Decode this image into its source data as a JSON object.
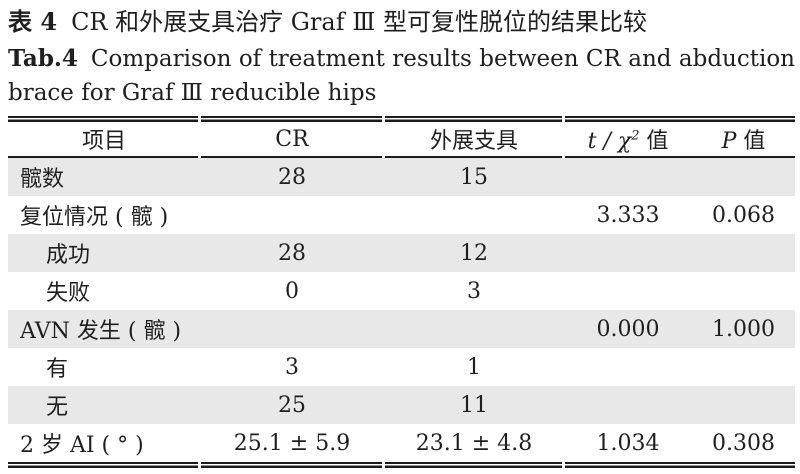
{
  "title": {
    "zh_label": "表 4",
    "zh_text": "CR 和外展支具治疗 Graf Ⅲ 型可复性脱位的结果比较",
    "en_label": "Tab.4",
    "en_text": "Comparison of treatment results between CR and abduction brace for Graf Ⅲ reducible hips"
  },
  "table": {
    "header": {
      "item": "项目",
      "cr": "CR",
      "brace": "外展支具",
      "stat_italic": "t / χ",
      "stat_sup": "2",
      "stat_suffix": " 值",
      "p_italic": "P",
      "p_suffix": " 值"
    },
    "rows": [
      {
        "label": "髋数",
        "cr": "28",
        "brace": "15",
        "stat": "",
        "p": ""
      },
      {
        "label": "复位情况 ( 髋 )",
        "cr": "",
        "brace": "",
        "stat": "3.333",
        "p": "0.068"
      },
      {
        "label": "成功",
        "cr": "28",
        "brace": "12",
        "stat": "",
        "p": ""
      },
      {
        "label": "失败",
        "cr": "0",
        "brace": "3",
        "stat": "",
        "p": ""
      },
      {
        "label": "AVN 发生 ( 髋 )",
        "cr": "",
        "brace": "",
        "stat": "0.000",
        "p": "1.000"
      },
      {
        "label": "有",
        "cr": "3",
        "brace": "1",
        "stat": "",
        "p": ""
      },
      {
        "label": "无",
        "cr": "25",
        "brace": "11",
        "stat": "",
        "p": ""
      },
      {
        "label": "2 岁 AI ( ° )",
        "cr": "25.1 ± 5.9",
        "brace": "23.1 ± 4.8",
        "stat": "1.034",
        "p": "0.308"
      }
    ]
  },
  "colors": {
    "text": "#1f1f1f",
    "shaded_row": "#e8e8e8",
    "rule": "#1c1c1c"
  }
}
